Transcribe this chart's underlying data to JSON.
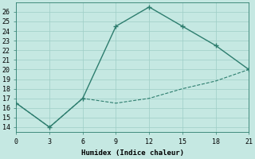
{
  "xlabel": "Humidex (Indice chaleur)",
  "line1_x": [
    0,
    3,
    6,
    9,
    12,
    15,
    18,
    21
  ],
  "line1_y": [
    16.5,
    14,
    17,
    24.5,
    26.5,
    24.5,
    22.5,
    20
  ],
  "line2_x": [
    0,
    3,
    6,
    9,
    12,
    15,
    18,
    21
  ],
  "line2_y": [
    16.5,
    14,
    17,
    16.5,
    17,
    18,
    18.8,
    20
  ],
  "line_color": "#2d7d6e",
  "bg_color": "#c5e8e2",
  "grid_color": "#9ecec6",
  "xlim": [
    0,
    21
  ],
  "ylim": [
    13.5,
    27
  ],
  "xticks": [
    0,
    3,
    6,
    9,
    12,
    15,
    18,
    21
  ],
  "yticks": [
    14,
    15,
    16,
    17,
    18,
    19,
    20,
    21,
    22,
    23,
    24,
    25,
    26
  ]
}
